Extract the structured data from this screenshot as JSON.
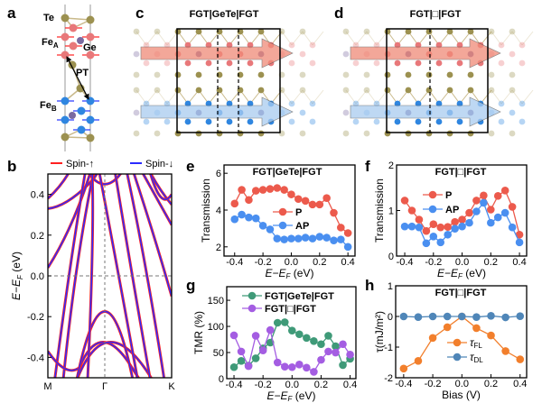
{
  "panels": {
    "a": {
      "label": "a",
      "atom_labels": {
        "te": "Te",
        "fea": "Fe",
        "fea_sub": "A",
        "ge": "Ge",
        "feb": "Fe",
        "feb_sub": "B",
        "pt": "PT"
      }
    },
    "c": {
      "label": "c",
      "title": "FGT|GeTe|FGT"
    },
    "d": {
      "label": "d",
      "title": "FGT|□|FGT"
    },
    "b": {
      "label": "b"
    },
    "e": {
      "label": "e"
    },
    "f": {
      "label": "f"
    },
    "g": {
      "label": "g"
    },
    "h": {
      "label": "h"
    }
  },
  "colors": {
    "te": "#9c9150",
    "fe_a": "#e8787a",
    "fe_b": "#2f86e0",
    "ge": "#7a6aa0",
    "spin_up": "#ff2020",
    "spin_down": "#2b2bff",
    "P": "#ec5a4c",
    "AP": "#4a8ff0",
    "gete": "#3f9a78",
    "vac": "#a45de2",
    "tau_fl": "#f27f2c",
    "tau_dl": "#4f86b8",
    "arrow_red": "#f08a78",
    "arrow_blue": "#a9ccf0"
  },
  "chart_data": [
    {
      "id": "b",
      "type": "line",
      "ylabel": "E−E",
      "ylabel_sub": "F",
      "ylabel_unit": " (eV)",
      "ylim": [
        -0.5,
        0.5
      ],
      "yticks": [
        -0.4,
        -0.2,
        0.0,
        0.2,
        0.4
      ],
      "ytick_labels": [
        "-0.4",
        "-0.2",
        "0.0",
        "0.2",
        "0.4"
      ],
      "xtick_labels": [
        "M",
        "Γ",
        "K"
      ],
      "legend": [
        {
          "name": "Spin-↑",
          "color": "#ff2020"
        },
        {
          "name": "Spin-↓",
          "color": "#2b2bff"
        }
      ],
      "legend_position": "top"
    },
    {
      "id": "e",
      "type": "line",
      "title": "FGT|GeTe|FGT",
      "xlabel": "E−E",
      "xlabel_sub": "F",
      "xlabel_unit": " (eV)",
      "ylabel": "Transmission",
      "xlim": [
        -0.475,
        0.45
      ],
      "ylim": [
        1.5,
        6.45
      ],
      "xticks": [
        -0.4,
        -0.2,
        0.0,
        0.2,
        0.4
      ],
      "xtick_labels": [
        "-0.4",
        "-0.2",
        "0.0",
        "0.2",
        "0.4"
      ],
      "yticks": [
        2,
        4,
        6
      ],
      "ytick_labels": [
        "2",
        "4",
        "6"
      ],
      "x": [
        -0.4,
        -0.35,
        -0.3,
        -0.25,
        -0.2,
        -0.15,
        -0.1,
        -0.05,
        0,
        0.05,
        0.1,
        0.15,
        0.2,
        0.25,
        0.3,
        0.35,
        0.4
      ],
      "series": [
        {
          "name": "P",
          "color": "#ec5a4c",
          "values": [
            4.35,
            5.1,
            4.55,
            5.05,
            5.1,
            5.15,
            5.2,
            5.1,
            4.85,
            4.6,
            4.5,
            4.3,
            4.3,
            4.65,
            3.85,
            3.05,
            2.75
          ]
        },
        {
          "name": "AP",
          "color": "#4a8ff0",
          "values": [
            3.5,
            3.75,
            3.6,
            3.55,
            3.15,
            2.95,
            2.45,
            2.4,
            2.45,
            2.45,
            2.5,
            2.45,
            2.55,
            2.5,
            2.35,
            2.4,
            2.0
          ]
        }
      ],
      "legend_position": "center-right"
    },
    {
      "id": "f",
      "type": "line",
      "title": "FGT|□|FGT",
      "xlabel": "E−E",
      "xlabel_sub": "F",
      "xlabel_unit": " (eV)",
      "ylabel": "Transmission",
      "xlim": [
        -0.457,
        0.45
      ],
      "ylim": [
        0,
        2
      ],
      "xticks": [
        -0.4,
        -0.2,
        0.0,
        0.2,
        0.4
      ],
      "xtick_labels": [
        "-0.4",
        "-0.2",
        "0.0",
        "0.2",
        "0.4"
      ],
      "yticks": [
        0,
        1,
        2
      ],
      "ytick_labels": [
        "0",
        "1",
        "2"
      ],
      "x": [
        -0.4,
        -0.35,
        -0.3,
        -0.25,
        -0.2,
        -0.15,
        -0.1,
        -0.05,
        0,
        0.05,
        0.1,
        0.15,
        0.2,
        0.25,
        0.3,
        0.35,
        0.4
      ],
      "series": [
        {
          "name": "P",
          "color": "#ec5a4c",
          "values": [
            1.22,
            1.0,
            0.8,
            0.55,
            0.7,
            0.63,
            0.64,
            0.75,
            0.8,
            0.95,
            1.22,
            1.33,
            1.02,
            1.32,
            1.44,
            1.08,
            0.47
          ]
        },
        {
          "name": "AP",
          "color": "#4a8ff0",
          "values": [
            0.65,
            0.65,
            0.63,
            0.28,
            0.43,
            0.3,
            0.47,
            0.6,
            0.65,
            0.73,
            0.98,
            1.17,
            0.73,
            0.85,
            0.95,
            0.63,
            0.3
          ]
        }
      ],
      "legend_position": "top-left"
    },
    {
      "id": "g",
      "type": "line",
      "xlabel": "E−E",
      "xlabel_sub": "F",
      "xlabel_unit": " (eV)",
      "ylabel": "TMR (%)",
      "xlim": [
        -0.45,
        0.44
      ],
      "ylim": [
        0,
        176
      ],
      "xticks": [
        -0.4,
        -0.2,
        0.0,
        0.2,
        0.4
      ],
      "xtick_labels": [
        "-0.4",
        "-0.2",
        "0.0",
        "0.2",
        "0.4"
      ],
      "yticks": [
        0,
        50,
        100,
        150
      ],
      "ytick_labels": [
        "0",
        "50",
        "100",
        "150"
      ],
      "x": [
        -0.4,
        -0.35,
        -0.3,
        -0.25,
        -0.2,
        -0.15,
        -0.1,
        -0.05,
        0,
        0.05,
        0.1,
        0.15,
        0.2,
        0.25,
        0.3,
        0.35,
        0.4
      ],
      "series": [
        {
          "name": "FGT|GeTe|FGT",
          "color": "#3f9a78",
          "values": [
            22,
            34,
            25,
            39,
            58,
            69,
            107,
            108,
            92,
            85,
            78,
            72,
            66,
            82,
            62,
            26,
            38
          ]
        },
        {
          "name": "FGT|□|FGT",
          "color": "#a45de2",
          "values": [
            83,
            52,
            24,
            82,
            54,
            93,
            31,
            23,
            22,
            27,
            21,
            13,
            36,
            52,
            50,
            66,
            46
          ]
        }
      ],
      "legend_position": "top"
    },
    {
      "id": "h",
      "type": "line",
      "title": "FGT|□|FGT",
      "xlabel": "Bias (V)",
      "ylabel": "τ(mJ/m²)",
      "xlim": [
        -0.455,
        0.445
      ],
      "ylim": [
        -2,
        1
      ],
      "xticks": [
        -0.4,
        -0.2,
        0.0,
        0.2,
        0.4
      ],
      "xtick_labels": [
        "-0.4",
        "-0.2",
        "0.0",
        "0.2",
        "0.4"
      ],
      "yticks": [
        -2,
        -1,
        0,
        1
      ],
      "ytick_labels": [
        "-2",
        "-1",
        "0",
        "1"
      ],
      "x": [
        -0.4,
        -0.3,
        -0.2,
        -0.1,
        0,
        0.1,
        0.2,
        0.3,
        0.4
      ],
      "series": [
        {
          "name": "τ",
          "name_sub": "FL",
          "color": "#f27f2c",
          "values": [
            -1.7,
            -1.45,
            -0.7,
            -0.35,
            0,
            -0.38,
            -0.62,
            -1.13,
            -1.4
          ]
        },
        {
          "name": "τ",
          "name_sub": "DL",
          "color": "#4f86b8",
          "values": [
            0,
            -0.02,
            0,
            0,
            0,
            -0.02,
            0.02,
            -0.03,
            0.01
          ]
        }
      ],
      "legend_position": "center-right"
    }
  ]
}
